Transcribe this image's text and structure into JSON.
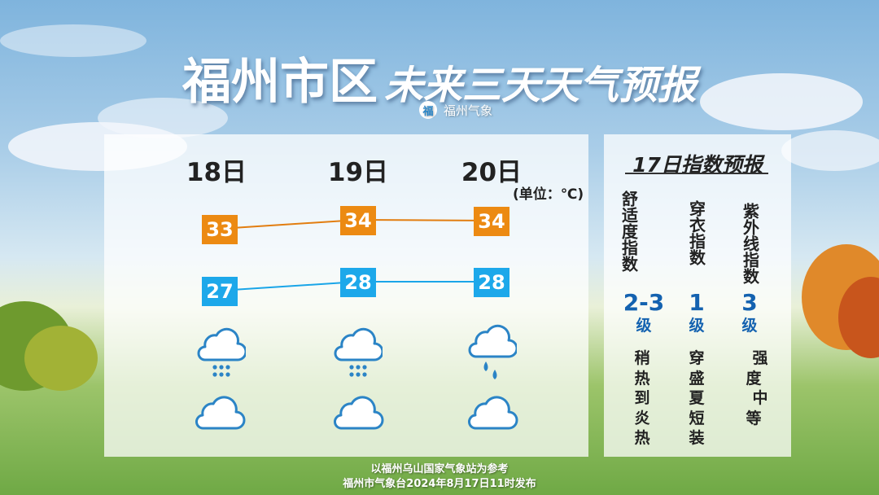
{
  "title": {
    "city": "福州市区",
    "subtitle": "未来三天天气预报"
  },
  "brand": {
    "logo_char": "福",
    "name": "福州气象"
  },
  "forecast": {
    "unit_label": "(单位：℃)",
    "days": [
      {
        "label": "18日",
        "high": "33",
        "low": "27",
        "day_icon": "heavy-rain-cloud-icon",
        "night_icon": "cloudy-icon"
      },
      {
        "label": "19日",
        "high": "34",
        "low": "28",
        "day_icon": "heavy-rain-cloud-icon",
        "night_icon": "cloudy-icon"
      },
      {
        "label": "20日",
        "high": "34",
        "low": "28",
        "day_icon": "light-rain-cloud-icon",
        "night_icon": "cloudy-icon"
      }
    ],
    "colors": {
      "high": "#ec8a12",
      "low": "#1da8ea"
    }
  },
  "indices": {
    "title": "17日指数预报",
    "items": [
      {
        "name": "舒适度指数",
        "level": "2-3",
        "unit": "级",
        "desc": "稍热到炎热"
      },
      {
        "name": "穿衣指数",
        "level": "1",
        "unit": "级",
        "desc": "穿盛夏短装"
      },
      {
        "name": "紫外线指数",
        "level": "3",
        "unit": "级",
        "desc": "强度 中等"
      }
    ]
  },
  "footer": {
    "line1": "以福州乌山国家气象站为参考",
    "line2": "福州市气象台2024年8月17日11时发布"
  }
}
